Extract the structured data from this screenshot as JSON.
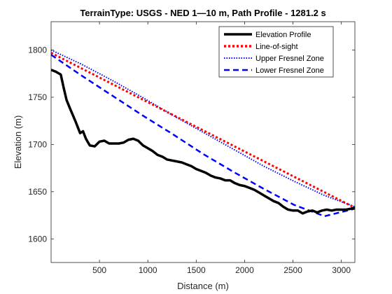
{
  "chart_data": {
    "type": "line",
    "title": "TerrainType: USGS - NED 1—10 m, Path Profile - 1281.2 s",
    "xlabel": "Distance (m)",
    "ylabel": "Elevation (m)",
    "xlim": [
      0,
      3140
    ],
    "ylim": [
      1575,
      1830
    ],
    "xticks": [
      500,
      1000,
      1500,
      2000,
      2500,
      3000
    ],
    "yticks": [
      1600,
      1650,
      1700,
      1750,
      1800
    ],
    "grid": false,
    "legend_position": "top-right",
    "series": [
      {
        "name": "Elevation Profile",
        "color": "#000000",
        "style": "solid",
        "x": [
          0,
          50,
          100,
          130,
          160,
          200,
          250,
          300,
          330,
          360,
          400,
          450,
          500,
          550,
          600,
          650,
          700,
          750,
          800,
          850,
          900,
          950,
          1000,
          1050,
          1100,
          1150,
          1200,
          1250,
          1300,
          1350,
          1400,
          1450,
          1500,
          1550,
          1600,
          1650,
          1700,
          1750,
          1800,
          1850,
          1900,
          1950,
          2000,
          2050,
          2100,
          2150,
          2200,
          2250,
          2300,
          2350,
          2400,
          2450,
          2500,
          2550,
          2600,
          2650,
          2700,
          2750,
          2800,
          2850,
          2900,
          2950,
          3000,
          3050,
          3100,
          3140
        ],
        "y": [
          1779,
          1777,
          1774,
          1760,
          1747,
          1737,
          1725,
          1712,
          1714,
          1706,
          1699,
          1698,
          1703,
          1704,
          1701,
          1701,
          1701,
          1702,
          1705,
          1706,
          1704,
          1699,
          1696,
          1693,
          1689,
          1687,
          1684,
          1683,
          1682,
          1681,
          1679,
          1677,
          1674,
          1672,
          1670,
          1667,
          1665,
          1664,
          1662,
          1662,
          1659,
          1657,
          1656,
          1654,
          1652,
          1649,
          1646,
          1643,
          1640,
          1638,
          1634,
          1631,
          1630,
          1630,
          1627,
          1629,
          1630,
          1628,
          1630,
          1631,
          1630,
          1631,
          1631,
          1631,
          1632,
          1633
        ]
      },
      {
        "name": "Line-of-sight",
        "color": "#ff0000",
        "style": "dotted",
        "x": [
          0,
          785,
          1570,
          2355,
          3140
        ],
        "y": [
          1797,
          1756,
          1715,
          1674,
          1633
        ]
      },
      {
        "name": "Upper Fresnel Zone",
        "color": "#0000ff",
        "style": "dotted",
        "x": [
          0,
          314,
          628,
          942,
          1256,
          1570,
          1884,
          2198,
          2512,
          2826,
          3140
        ],
        "y": [
          1800,
          1785,
          1768,
          1750,
          1731,
          1713,
          1695,
          1677,
          1661,
          1646,
          1634
        ]
      },
      {
        "name": "Lower Fresnel Zone",
        "color": "#0000ff",
        "style": "dashed",
        "x": [
          0,
          314,
          628,
          942,
          1256,
          1570,
          1884,
          2198,
          2512,
          2826,
          3140
        ],
        "y": [
          1795,
          1773,
          1752,
          1731,
          1711,
          1690,
          1671,
          1653,
          1636,
          1624,
          1632
        ]
      }
    ]
  }
}
